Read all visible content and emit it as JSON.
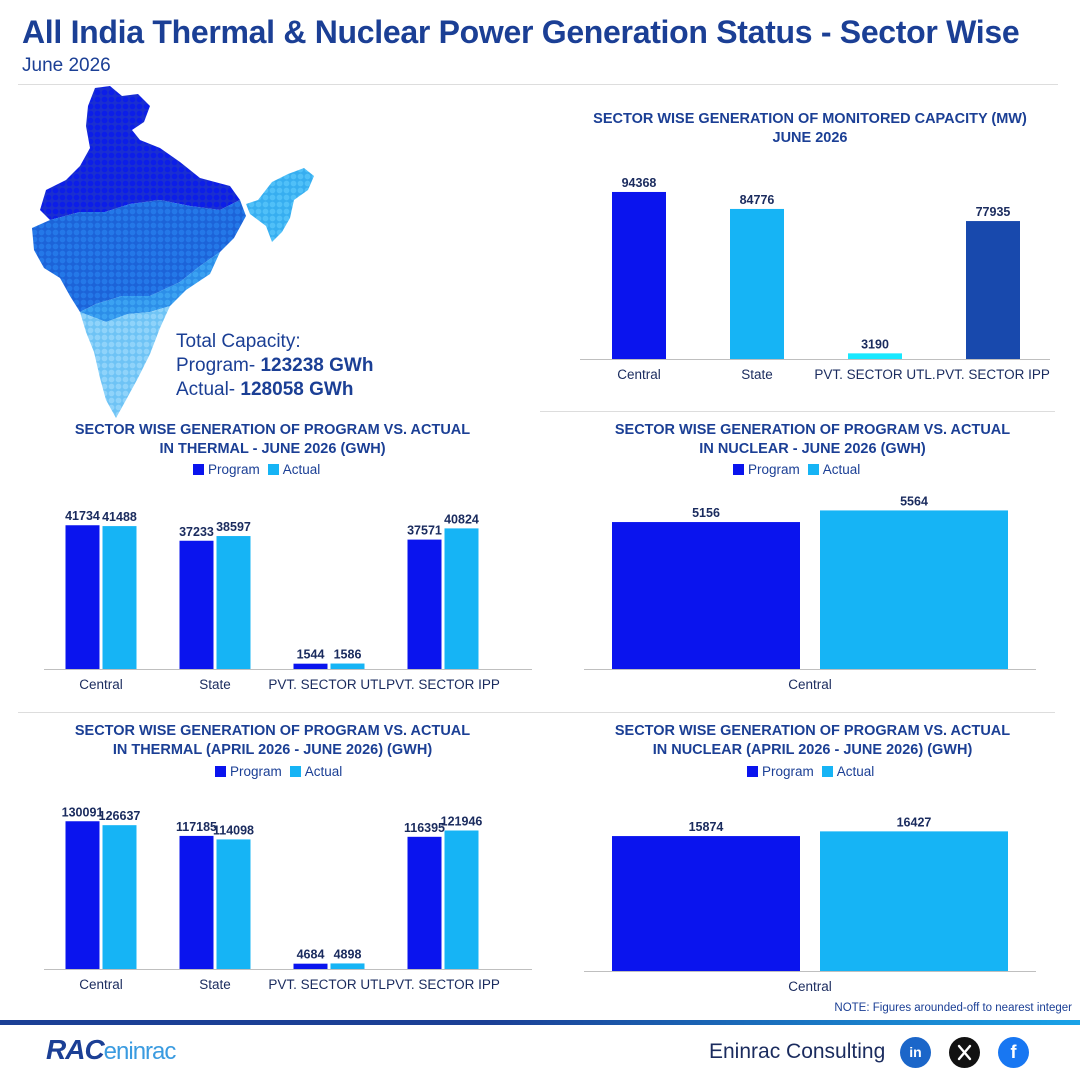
{
  "header": {
    "title": "All India Thermal & Nuclear Power Generation Status - Sector Wise",
    "subtitle": "June 2026"
  },
  "capacity": {
    "label": "Total Capacity:",
    "program_label": "Program-",
    "program_value": "123238 GWh",
    "actual_label": "Actual-",
    "actual_value": "128058 GWh"
  },
  "legend": {
    "program": "Program",
    "actual": "Actual"
  },
  "colors": {
    "program": "#0a14ee",
    "actual": "#16b4f5",
    "dark_navy": "#1b3f95",
    "pvt_utl_capacity": "#19e8ff",
    "ipp_capacity": "#1849ad"
  },
  "note": "NOTE: Figures arounded-off to nearest integer",
  "footer": {
    "brand_left": "RAC",
    "brand_right": "eninrac",
    "company": "Eninrac Consulting",
    "social": [
      "linkedin-icon",
      "x-icon",
      "facebook-icon"
    ]
  },
  "chart_data": [
    {
      "id": "capacity",
      "type": "bar",
      "title_line1": "SECTOR WISE GENERATION OF MONITORED CAPACITY (MW)",
      "title_line2": "JUNE 2026",
      "categories": [
        "Central",
        "State",
        "PVT. SECTOR UTL.",
        "PVT. SECTOR IPP"
      ],
      "values": [
        94368,
        84776,
        3190,
        77935
      ],
      "bar_colors": [
        "#0a14ee",
        "#16b4f5",
        "#19e8ff",
        "#1849ad"
      ],
      "ylim": [
        0,
        100000
      ]
    },
    {
      "id": "thermal_june",
      "type": "bar",
      "title_line1": "SECTOR WISE GENERATION OF PROGRAM VS. ACTUAL",
      "title_line2": "IN THERMAL - JUNE 2026 (GWH)",
      "categories": [
        "Central",
        "State",
        "PVT. SECTOR UTL.",
        "PVT. SECTOR IPP"
      ],
      "series": [
        {
          "name": "Program",
          "values": [
            41734,
            37233,
            1544,
            37571
          ]
        },
        {
          "name": "Actual",
          "values": [
            41488,
            38597,
            1586,
            40824
          ]
        }
      ],
      "ylim": [
        0,
        45000
      ]
    },
    {
      "id": "nuclear_june",
      "type": "bar",
      "title_line1": "SECTOR WISE GENERATION OF PROGRAM VS. ACTUAL",
      "title_line2": "IN NUCLEAR  - JUNE 2026 (GWH)",
      "categories": [
        "Central"
      ],
      "series": [
        {
          "name": "Program",
          "values": [
            5156
          ]
        },
        {
          "name": "Actual",
          "values": [
            5564
          ]
        }
      ],
      "ylim": [
        0,
        6000
      ]
    },
    {
      "id": "thermal_ytd",
      "type": "bar",
      "title_line1": "SECTOR WISE GENERATION OF PROGRAM VS. ACTUAL",
      "title_line2": "IN THERMAL (APRIL 2026 - JUNE 2026) (GWH)",
      "categories": [
        "Central",
        "State",
        "PVT. SECTOR UTL.",
        "PVT. SECTOR IPP"
      ],
      "series": [
        {
          "name": "Program",
          "values": [
            130091,
            117185,
            4684,
            116395
          ]
        },
        {
          "name": "Actual",
          "values": [
            126637,
            114098,
            4898,
            121946
          ]
        }
      ],
      "ylim": [
        0,
        140000
      ]
    },
    {
      "id": "nuclear_ytd",
      "type": "bar",
      "title_line1": "SECTOR WISE GENERATION OF PROGRAM VS. ACTUAL",
      "title_line2": "IN NUCLEAR (APRIL 2026 - JUNE 2026) (GWH)",
      "categories": [
        "Central"
      ],
      "series": [
        {
          "name": "Program",
          "values": [
            15874
          ]
        },
        {
          "name": "Actual",
          "values": [
            16427
          ]
        }
      ],
      "ylim": [
        0,
        18000
      ]
    }
  ]
}
